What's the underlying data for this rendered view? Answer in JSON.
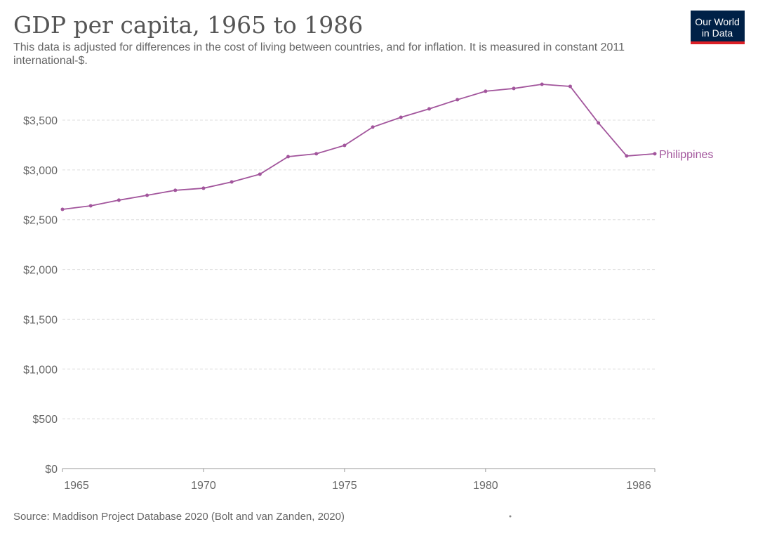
{
  "chart_data": {
    "type": "line",
    "title": "GDP per capita, 1965 to 1986",
    "subtitle": "This data is adjusted for differences in the cost of living between countries, and for inflation. It is measured in constant 2011 international-$.",
    "source": "Source: Maddison Project Database 2020 (Bolt and van Zanden, 2020)",
    "logo": [
      "Our World",
      "in Data"
    ],
    "x": [
      1965,
      1966,
      1967,
      1968,
      1969,
      1970,
      1971,
      1972,
      1973,
      1974,
      1975,
      1976,
      1977,
      1978,
      1979,
      1980,
      1981,
      1982,
      1983,
      1984,
      1985,
      1986
    ],
    "series": [
      {
        "name": "Philippines",
        "color": "#a2559c",
        "values": [
          2604,
          2639,
          2696,
          2745,
          2795,
          2816,
          2879,
          2957,
          3133,
          3162,
          3246,
          3430,
          3528,
          3613,
          3705,
          3790,
          3818,
          3860,
          3839,
          3472,
          3140,
          3162
        ]
      }
    ],
    "xlim": [
      1965,
      1986
    ],
    "xticks": [
      1965,
      1970,
      1975,
      1980,
      1986
    ],
    "ylim": [
      0,
      3900
    ],
    "yticks": [
      {
        "value": 0,
        "label": "$0"
      },
      {
        "value": 500,
        "label": "$500"
      },
      {
        "value": 1000,
        "label": "$1,000"
      },
      {
        "value": 1500,
        "label": "$1,500"
      },
      {
        "value": 2000,
        "label": "$2,000"
      },
      {
        "value": 2500,
        "label": "$2,500"
      },
      {
        "value": 3000,
        "label": "$3,000"
      },
      {
        "value": 3500,
        "label": "$3,500"
      }
    ],
    "grid": true
  }
}
